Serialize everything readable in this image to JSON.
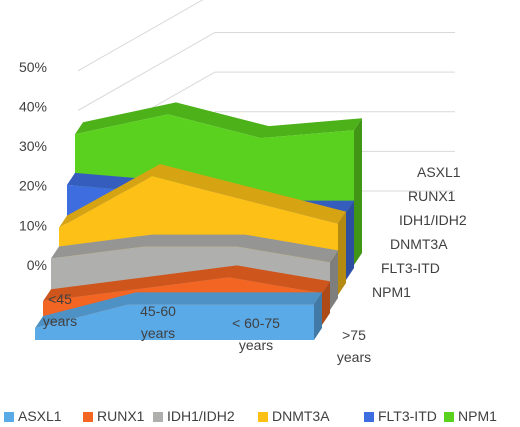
{
  "chart_data": {
    "type": "area",
    "style": "3d-ribbon",
    "categories": [
      "<45 years",
      "45-60 years",
      "< 60-75 years",
      ">75 years"
    ],
    "category_lines": [
      [
        "<45",
        "years"
      ],
      [
        "45-60",
        "years"
      ],
      [
        "< 60-75",
        "years"
      ],
      [
        ">75",
        "years"
      ]
    ],
    "y_ticks": [
      "0%",
      "10%",
      "20%",
      "30%",
      "40%",
      "50%"
    ],
    "ylim": [
      0,
      55
    ],
    "grid": true,
    "legend_position": "bottom",
    "series": [
      {
        "name": "ASXL1",
        "color": "#5aaae8",
        "values": [
          3,
          9,
          9,
          9
        ]
      },
      {
        "name": "RUNX1",
        "color": "#f26522",
        "values": [
          6,
          9,
          12,
          8
        ]
      },
      {
        "name": "IDH1/IDH2",
        "color": "#afb0ae",
        "values": [
          13,
          16,
          16,
          12
        ]
      },
      {
        "name": "DNMT3A",
        "color": "#fcc016",
        "values": [
          17,
          30,
          24,
          18
        ]
      },
      {
        "name": "FLT3-ITD",
        "color": "#3e6de0",
        "values": [
          24,
          22,
          17,
          17
        ]
      },
      {
        "name": "NPM1",
        "color": "#5bd11f",
        "values": [
          33,
          38,
          32,
          34
        ]
      }
    ]
  }
}
